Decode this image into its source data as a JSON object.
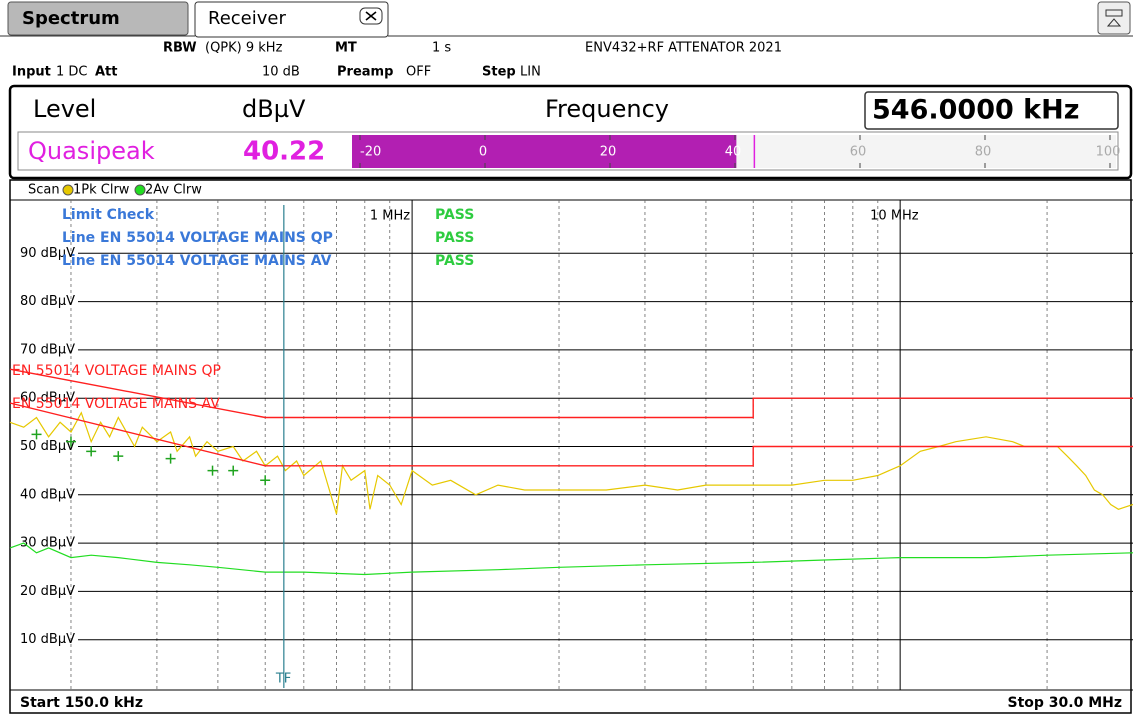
{
  "tabs": [
    "Spectrum",
    "Receiver"
  ],
  "info": {
    "row1": [
      {
        "label": "RBW",
        "value": "(QPK) 9 kHz"
      },
      {
        "label": "MT",
        "value": "1 s"
      },
      {
        "label": "",
        "value": "ENV432+RF ATTENATOR 2021"
      }
    ],
    "row2": [
      {
        "label": "Input",
        "value": "1 DC"
      },
      {
        "label": "Att",
        "value": "10 dB"
      },
      {
        "label": "Preamp",
        "value": "OFF"
      },
      {
        "label": "Step",
        "value": "LIN"
      }
    ]
  },
  "level_panel": {
    "level": "Level",
    "unit": "dBµV",
    "frequency_label": "Frequency",
    "frequency": "546.0000 kHz",
    "detector": "Quasipeak",
    "value": 40.22,
    "scale": [
      -20,
      0,
      20,
      40,
      60,
      80,
      100
    ]
  },
  "chart_data": {
    "type": "line",
    "legend_title": "Scan",
    "xscale": "log",
    "xlim": [
      0.15,
      30
    ],
    "ylim": [
      0,
      100
    ],
    "xticks": [
      {
        "value": 1,
        "label": "1 MHz"
      },
      {
        "value": 10,
        "label": "10 MHz"
      }
    ],
    "xminor": [
      0.2,
      0.3,
      0.4,
      0.5,
      0.6,
      0.7,
      0.8,
      0.9,
      2,
      3,
      4,
      5,
      6,
      7,
      8,
      9,
      20
    ],
    "yticks": [
      {
        "value": 10,
        "label": "10 dBµV"
      },
      {
        "value": 20,
        "label": "20 dBµV"
      },
      {
        "value": 30,
        "label": "30 dBµV"
      },
      {
        "value": 40,
        "label": "40 dBµV"
      },
      {
        "value": 50,
        "label": "50 dBµV"
      },
      {
        "value": 60,
        "label": "60 dBµV"
      },
      {
        "value": 70,
        "label": "70 dBµV"
      },
      {
        "value": 80,
        "label": "80 dBµV"
      },
      {
        "value": 90,
        "label": "90 dBµV"
      }
    ],
    "grid": true,
    "start_label": "Start 150.0 kHz",
    "stop_label": "Stop 30.0 MHz",
    "series": [
      {
        "name": "1Pk Clrw",
        "color": "#e6c800",
        "x": [
          0.15,
          0.16,
          0.17,
          0.18,
          0.19,
          0.2,
          0.21,
          0.22,
          0.23,
          0.24,
          0.25,
          0.27,
          0.28,
          0.3,
          0.32,
          0.33,
          0.35,
          0.36,
          0.38,
          0.4,
          0.43,
          0.45,
          0.48,
          0.5,
          0.53,
          0.55,
          0.58,
          0.6,
          0.65,
          0.7,
          0.72,
          0.75,
          0.8,
          0.82,
          0.85,
          0.9,
          0.95,
          1.0,
          1.1,
          1.2,
          1.35,
          1.5,
          1.7,
          2,
          2.5,
          3,
          3.5,
          4,
          5,
          6,
          7,
          8,
          9,
          10,
          11,
          12,
          13,
          15,
          17,
          18,
          20,
          21,
          22,
          23,
          24,
          25,
          26,
          27,
          28,
          30
        ],
        "values": [
          55,
          54,
          56,
          52,
          55,
          53,
          57,
          51,
          55,
          52,
          56,
          50,
          54,
          51,
          53,
          49,
          52,
          48,
          51,
          49,
          50,
          47,
          49,
          46,
          48,
          45,
          47,
          44,
          47,
          36,
          46,
          43,
          45,
          37,
          44,
          42,
          38,
          45,
          42,
          43,
          40,
          42,
          41,
          41,
          41,
          42,
          41,
          42,
          42,
          42,
          43,
          43,
          44,
          46,
          49,
          50,
          51,
          52,
          51,
          50,
          50,
          50,
          48,
          46,
          44,
          41,
          40,
          38,
          37,
          38
        ]
      },
      {
        "name": "2Av Clrw",
        "color": "#22dd22",
        "x": [
          0.15,
          0.16,
          0.17,
          0.18,
          0.2,
          0.22,
          0.25,
          0.3,
          0.35,
          0.4,
          0.5,
          0.6,
          0.8,
          1,
          1.5,
          2,
          3,
          5,
          7,
          10,
          15,
          20,
          30
        ],
        "values": [
          29,
          30,
          28,
          29,
          27,
          27.5,
          27,
          26,
          25.5,
          25,
          24,
          24,
          23.5,
          24,
          24.5,
          25,
          25.5,
          26,
          26.5,
          27,
          27,
          27.5,
          28
        ]
      },
      {
        "name": "EN 55014 VOLTAGE MAINS QP",
        "color": "#ff2020",
        "x": [
          0.15,
          0.5,
          5,
          5,
          30
        ],
        "values": [
          66,
          56,
          56,
          60,
          60
        ]
      },
      {
        "name": "EN 55014 VOLTAGE MAINS AV",
        "color": "#ff2020",
        "x": [
          0.15,
          0.5,
          5,
          5,
          30
        ],
        "values": [
          59,
          46,
          46,
          50,
          50
        ]
      }
    ],
    "final_points": {
      "color": "#1fa31f",
      "x": [
        0.17,
        0.2,
        0.22,
        0.25,
        0.32,
        0.39,
        0.43,
        0.5
      ],
      "values": [
        52.5,
        51,
        49,
        48,
        47.5,
        45,
        45,
        43
      ]
    },
    "tf_marker": {
      "label": "TF",
      "x": 0.546
    },
    "limit_check": [
      {
        "label": "Limit Check",
        "result": "PASS"
      },
      {
        "label": "Line EN 55014 VOLTAGE MAINS QP",
        "result": "PASS"
      },
      {
        "label": "Line EN 55014 VOLTAGE MAINS AV",
        "result": "PASS"
      }
    ]
  }
}
